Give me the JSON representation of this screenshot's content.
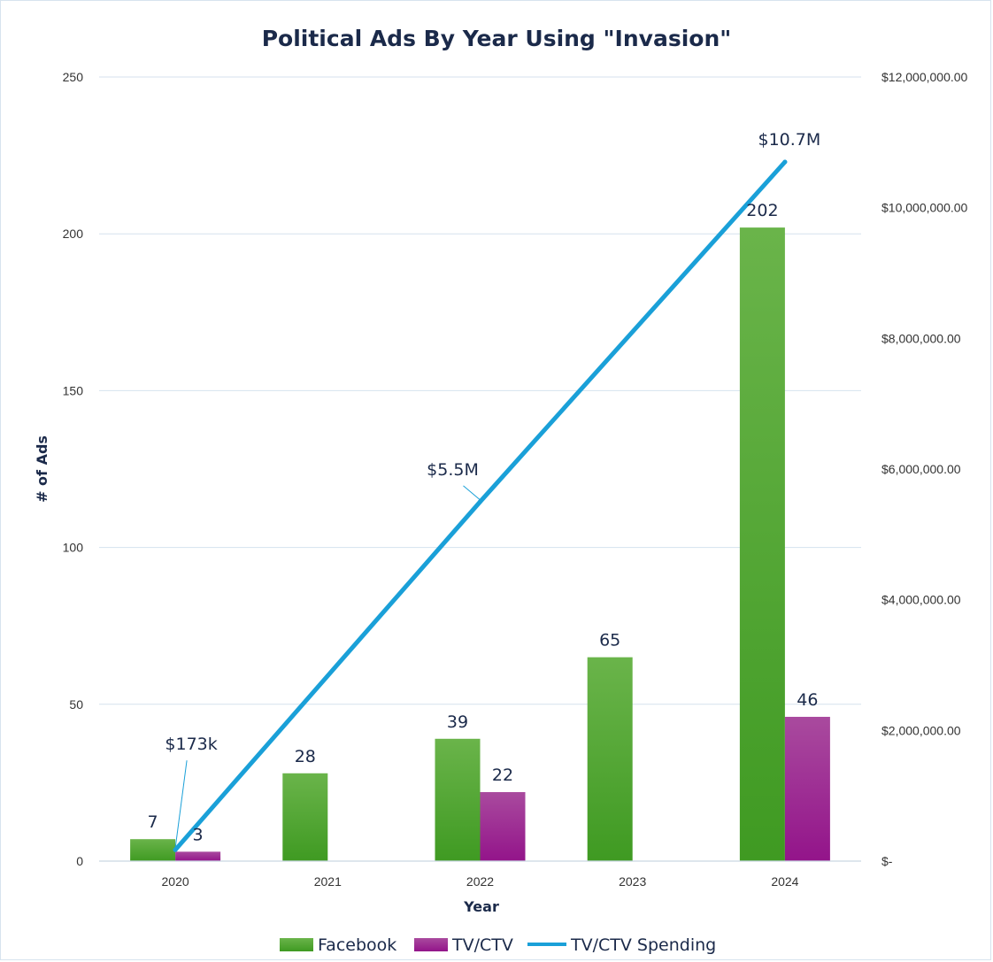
{
  "chart_data": {
    "type": "bar",
    "title": "Political Ads By Year Using \"Invasion\"",
    "xlabel": "Year",
    "ylabel": "# of Ads",
    "categories": [
      "2020",
      "2021",
      "2022",
      "2023",
      "2024"
    ],
    "ylim": [
      0,
      250
    ],
    "yticks": [
      "0",
      "50",
      "100",
      "150",
      "200",
      "250"
    ],
    "y2lim": [
      0,
      12000000
    ],
    "y2ticks": [
      "$-",
      "$2,000,000.00",
      "$4,000,000.00",
      "$6,000,000.00",
      "$8,000,000.00",
      "$10,000,000.00",
      "$12,000,000.00"
    ],
    "grid": true,
    "legend_position": "bottom",
    "series": [
      {
        "name": "Facebook",
        "kind": "bar",
        "axis": "left",
        "color": "#4aa52e",
        "values": [
          7,
          28,
          39,
          65,
          202
        ],
        "labels": [
          "7",
          "28",
          "39",
          "65",
          "202"
        ]
      },
      {
        "name": "TV/CTV",
        "kind": "bar",
        "axis": "left",
        "color": "#9e1f8f",
        "values": [
          3,
          null,
          22,
          null,
          46
        ],
        "labels": [
          "3",
          "",
          "22",
          "",
          "46"
        ]
      },
      {
        "name": "TV/CTV Spending",
        "kind": "line",
        "axis": "right",
        "color": "#1aa0d8",
        "values": [
          173000,
          null,
          5500000,
          null,
          10700000
        ],
        "labels": [
          "$173k",
          "",
          "$5.5M",
          "",
          "$10.7M"
        ]
      }
    ]
  }
}
